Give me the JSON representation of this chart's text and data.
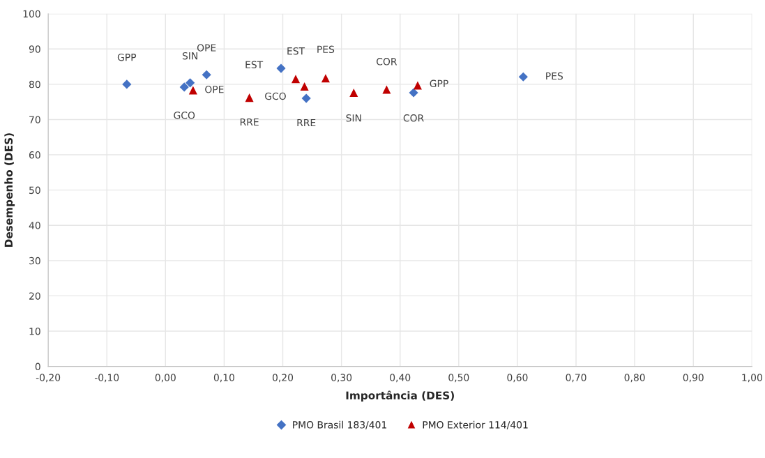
{
  "chart_data": {
    "type": "scatter",
    "xlabel": "Importância (DES)",
    "ylabel": "Desempenho (DES)",
    "xlim": [
      -0.2,
      1.0
    ],
    "ylim": [
      0,
      100
    ],
    "xticks": [
      {
        "value": -0.2,
        "label": "-0,20"
      },
      {
        "value": -0.1,
        "label": "-0,10"
      },
      {
        "value": 0,
        "label": "0,00"
      },
      {
        "value": 0.1,
        "label": "0,10"
      },
      {
        "value": 0.2,
        "label": "0,20"
      },
      {
        "value": 0.3,
        "label": "0,30"
      },
      {
        "value": 0.4,
        "label": "0,40"
      },
      {
        "value": 0.5,
        "label": "0,50"
      },
      {
        "value": 0.6,
        "label": "0,60"
      },
      {
        "value": 0.7,
        "label": "0,70"
      },
      {
        "value": 0.8,
        "label": "0,80"
      },
      {
        "value": 0.9,
        "label": "0,90"
      },
      {
        "value": 1.0,
        "label": "1,00"
      }
    ],
    "yticks": [
      0,
      10,
      20,
      30,
      40,
      50,
      60,
      70,
      80,
      90,
      100
    ],
    "grid": true,
    "legend": "bottom",
    "series": [
      {
        "name": "PMO Brasil 183/401",
        "color": "#4472c4",
        "marker": "diamond",
        "x": [
          -0.066,
          0.032,
          0.042,
          0.07,
          0.197,
          0.24,
          0.423,
          0.61
        ],
        "values": [
          80.0,
          79.2,
          80.4,
          82.7,
          84.5,
          76.0,
          77.6,
          82.1
        ],
        "value_labels": [
          "GPP",
          "GCO",
          "SIN",
          "OPE",
          "EST",
          "RRE",
          "COR",
          "PES"
        ]
      },
      {
        "name": "PMO Exterior 114/401",
        "color": "#c00000",
        "marker": "triangle",
        "x": [
          0.047,
          0.143,
          0.222,
          0.237,
          0.273,
          0.321,
          0.377,
          0.43
        ],
        "values": [
          78.3,
          76.2,
          81.5,
          79.4,
          81.7,
          77.6,
          78.5,
          79.7
        ],
        "value_labels": [
          "OPE",
          "RRE",
          "EST",
          "GCO",
          "PES",
          "SIN",
          "COR",
          "GPP"
        ]
      }
    ]
  }
}
